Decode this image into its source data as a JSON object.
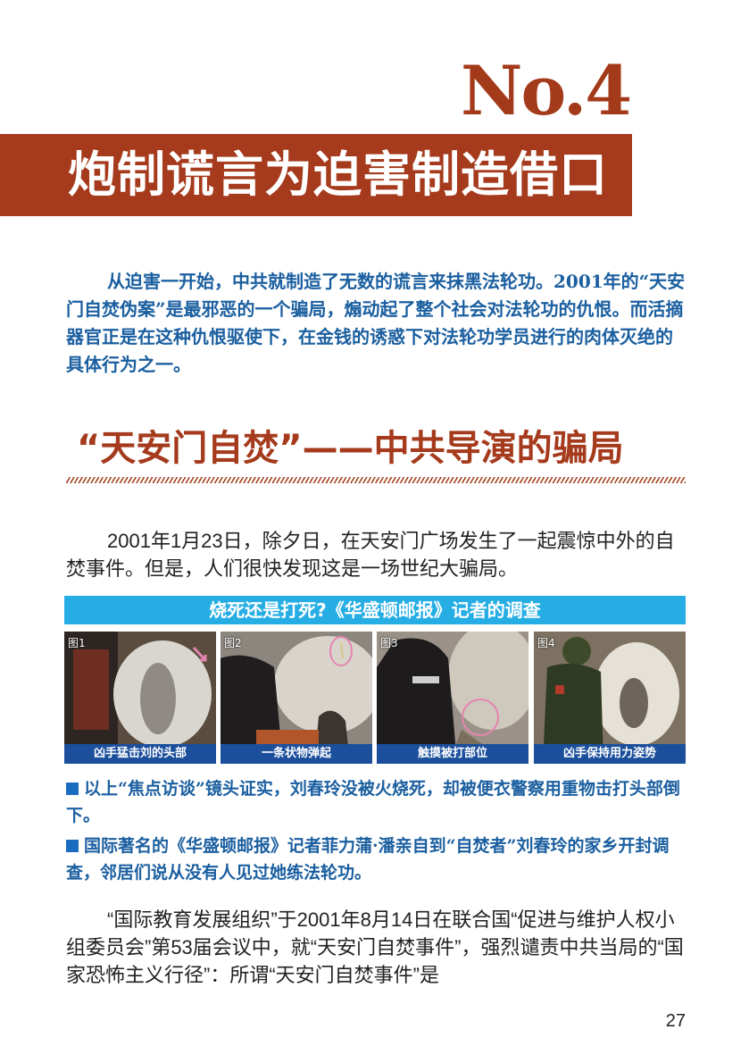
{
  "chapter": {
    "number": "No.4",
    "title": "炮制谎言为迫害制造借口"
  },
  "intro": "从迫害一开始，中共就制造了无数的谎言来抹黑法轮功。2001年的“天安门自焚伪案”是最邪恶的一个骗局，煽动起了整个社会对法轮功的仇恨。而活摘器官正是在这种仇恨驱使下，在金钱的诱惑下对法轮功学员进行的肉体灭绝的具体行为之一。",
  "section": {
    "heading": "“天安门自焚”——中共导演的骗局"
  },
  "paragraphs": [
    "2001年1月23日，除夕日，在天安门广场发生了一起震惊中外的自焚事件。但是，人们很快发现这是一场世纪大骗局。",
    "“国际教育发展组织”于2001年8月14日在联合国“促进与维护人权小组委员会”第53届会议中，就“天安门自焚事件”，强烈谴责中共当局的“国家恐怖主义行径”：所谓“天安门自焚事件”是"
  ],
  "photo_panel": {
    "title": "烧死还是打死?《华盛顿邮报》记者的调查",
    "photos": [
      {
        "label": "图1",
        "caption": "凶手猛击刘的头部"
      },
      {
        "label": "图2",
        "caption": "一条状物弹起"
      },
      {
        "label": "图3",
        "caption": "触摸被打部位"
      },
      {
        "label": "图4",
        "caption": "凶手保持用力姿势"
      }
    ]
  },
  "bullets": [
    "以上“焦点访谈”镜头证实，刘春玲没被火烧死，却被便衣警察用重物击打头部倒下。",
    "国际著名的《华盛顿邮报》记者菲力蒲·潘亲自到“自焚者”刘春玲的家乡开封调查，邻居们说从没有人见过她练法轮功。"
  ],
  "page_number": "27",
  "colors": {
    "brand_red": "#a53a1c",
    "blue_text": "#1b5fa0",
    "photo_title_bg": "#26aee4",
    "caption_bg": "#1b4f9c"
  }
}
